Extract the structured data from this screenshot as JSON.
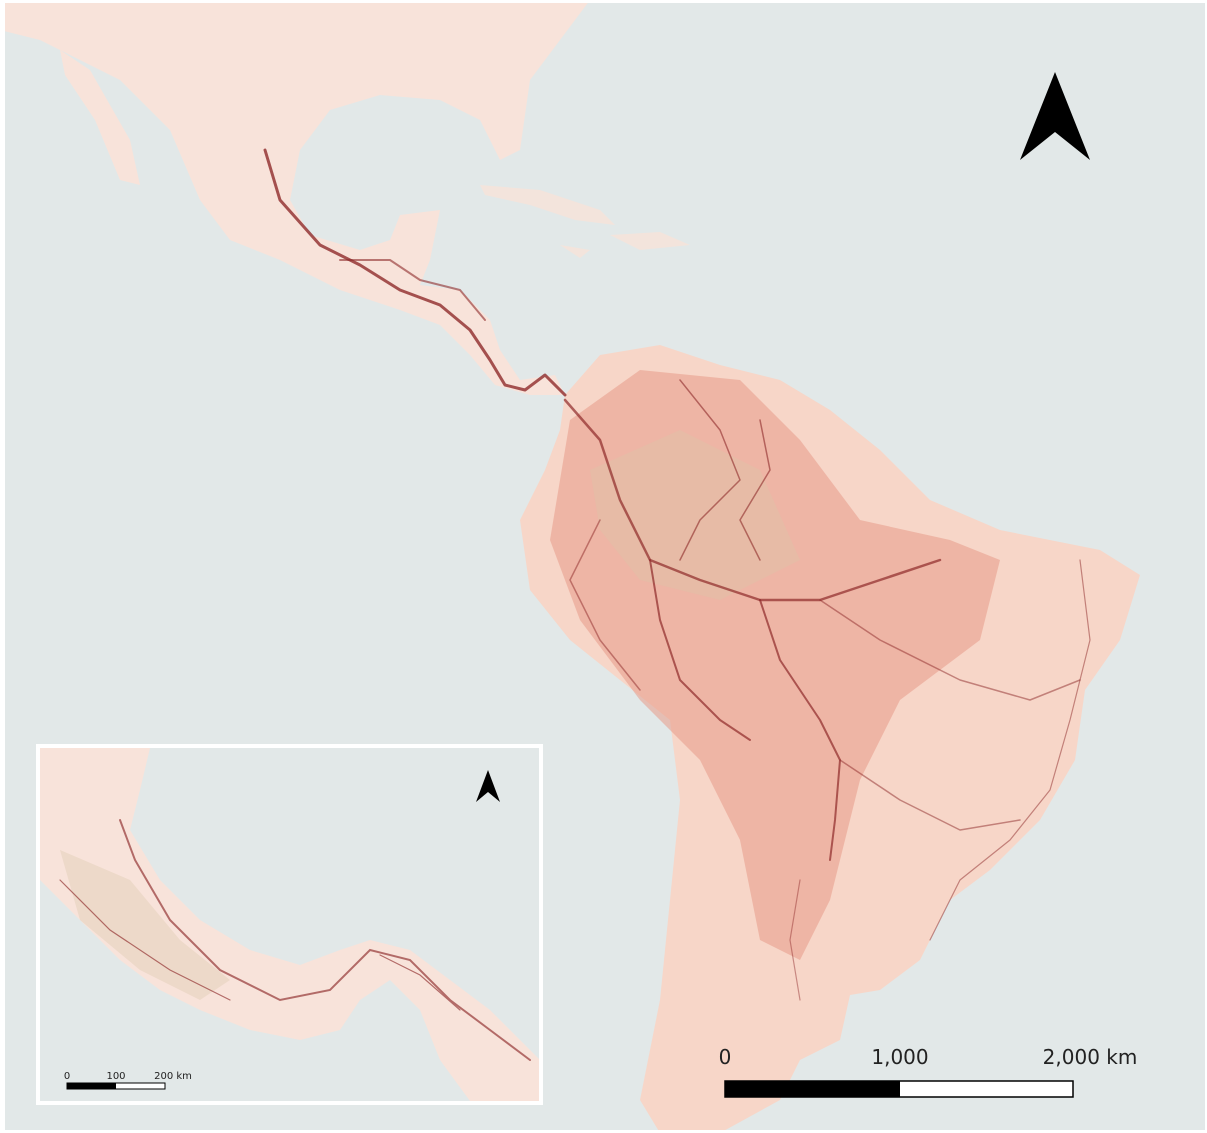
{
  "main_scale": {
    "labels": [
      "0",
      "1,000",
      "2,000 km"
    ]
  },
  "inset_scale": {
    "labels": [
      "0",
      "100",
      "200 km"
    ]
  }
}
